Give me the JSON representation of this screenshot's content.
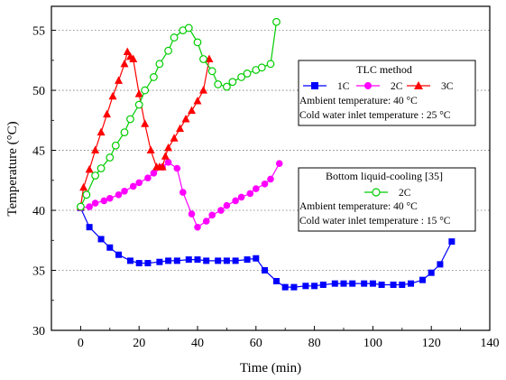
{
  "chart_data": {
    "type": "line",
    "xlabel": "Time (min)",
    "ylabel": "Temperature (°C)",
    "xlim": [
      -10,
      140
    ],
    "ylim": [
      30,
      57
    ],
    "xticks": [
      0,
      20,
      40,
      60,
      80,
      100,
      120,
      140
    ],
    "yticks": [
      30,
      35,
      40,
      45,
      50,
      55
    ],
    "grid": "horizontal-dotted",
    "legend1": {
      "title": "TLC method",
      "entries": [
        "1C",
        "2C",
        "3C"
      ],
      "note1": "Ambient temperature: 40 °C",
      "note2": "Cold water inlet temperature : 25 °C"
    },
    "legend2": {
      "title": "Bottom liquid-cooling [35]",
      "entries": [
        "2C"
      ],
      "note1": "Ambient temperature: 40 °C",
      "note2": "Cold water inlet temperature : 15 °C"
    },
    "series": [
      {
        "name": "1C",
        "color": "#0000ff",
        "marker": "square",
        "x": [
          0,
          3,
          7,
          10,
          13,
          17,
          20,
          23,
          27,
          30,
          33,
          37,
          40,
          43,
          47,
          50,
          53,
          57,
          60,
          63,
          67,
          70,
          73,
          77,
          80,
          83,
          87,
          90,
          93,
          97,
          100,
          103,
          107,
          110,
          113,
          117,
          120,
          123,
          127
        ],
        "y": [
          40.2,
          38.6,
          37.6,
          36.9,
          36.3,
          35.8,
          35.6,
          35.6,
          35.7,
          35.8,
          35.8,
          35.9,
          35.9,
          35.8,
          35.8,
          35.8,
          35.8,
          35.9,
          36.0,
          35.0,
          34.1,
          33.6,
          33.6,
          33.7,
          33.7,
          33.8,
          33.9,
          33.9,
          33.9,
          33.9,
          33.9,
          33.8,
          33.8,
          33.8,
          33.9,
          34.2,
          34.8,
          35.5,
          37.4
        ]
      },
      {
        "name": "2C (TLC)",
        "color": "#ff00ff",
        "marker": "circle",
        "x": [
          0,
          3,
          5,
          8,
          10,
          13,
          15,
          18,
          20,
          23,
          25,
          28,
          30,
          33,
          35,
          38,
          40,
          43,
          45,
          48,
          50,
          53,
          55,
          58,
          60,
          63,
          65,
          68
        ],
        "y": [
          40.2,
          40.3,
          40.6,
          40.8,
          41.0,
          41.3,
          41.6,
          42.0,
          42.3,
          42.7,
          43.1,
          43.6,
          44.0,
          43.5,
          41.5,
          39.7,
          38.6,
          39.1,
          39.6,
          40.0,
          40.4,
          40.8,
          41.1,
          41.4,
          41.8,
          42.2,
          42.6,
          43.9
        ]
      },
      {
        "name": "3C",
        "color": "#ff0000",
        "marker": "triangle",
        "x": [
          0,
          1,
          3,
          5,
          7,
          9,
          11,
          13,
          15,
          16,
          17,
          18,
          20,
          22,
          24,
          26,
          27,
          28,
          29,
          30,
          32,
          34,
          36,
          38,
          40,
          42,
          44
        ],
        "y": [
          40.3,
          41.9,
          43.4,
          45.0,
          46.5,
          48.0,
          49.5,
          50.8,
          52.2,
          53.2,
          52.8,
          52.6,
          49.7,
          47.2,
          45.0,
          43.6,
          43.6,
          43.6,
          44.5,
          45.2,
          46.0,
          46.8,
          47.6,
          48.3,
          49.1,
          50.0,
          52.6
        ]
      },
      {
        "name": "2C",
        "color": "#00cc00",
        "marker": "circle-open",
        "x": [
          0,
          2,
          5,
          7,
          10,
          12,
          15,
          17,
          20,
          22,
          25,
          27,
          30,
          32,
          35,
          37,
          40,
          42,
          45,
          47,
          50,
          52,
          55,
          57,
          60,
          62,
          65,
          67
        ],
        "y": [
          40.3,
          41.3,
          42.9,
          43.5,
          44.4,
          45.4,
          46.5,
          47.6,
          48.8,
          50.0,
          51.1,
          52.2,
          53.3,
          54.4,
          55.0,
          55.2,
          54.0,
          52.6,
          51.6,
          50.5,
          50.3,
          50.7,
          51.1,
          51.4,
          51.7,
          51.9,
          52.2,
          55.7
        ]
      }
    ]
  }
}
